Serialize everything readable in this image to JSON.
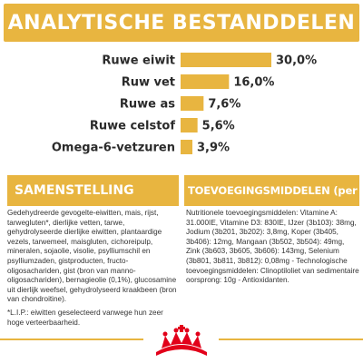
{
  "header": {
    "title": "ANALYTISCHE BESTANDDELEN"
  },
  "chart_data": {
    "type": "bar",
    "orientation": "horizontal",
    "categories": [
      "Ruwe eiwit",
      "Ruw vet",
      "Ruwe as",
      "Ruwe celstof",
      "Omega-6-vetzuren"
    ],
    "values": [
      30.0,
      16.0,
      7.6,
      5.6,
      3.9
    ],
    "value_labels": [
      "30,0%",
      "16,0%",
      "7,6%",
      "5,6%",
      "3,9%"
    ],
    "title": "ANALYTISCHE BESTANDDELEN",
    "xlabel": "",
    "ylabel": "",
    "xlim": [
      0,
      30
    ],
    "grid": false,
    "bar_color": "#e8b540"
  },
  "samenstelling": {
    "title": "SAMENSTELLING",
    "text": "Gedehydreerde gevogelte-eiwitten, mais, rijst, tarwegluten*, dierlijke vetten, tarwe, gehydrolyseerde dierlijke eiwitten, plantaardige vezels, tarwemeel, maisgluten, cichoreipulp, mineralen, sojaolie, visolie, psylliumschil en psylliumzaden, gistproducten, fructo-oligosachariden, gist (bron van manno-oligosachariden), bernagieolie (0,1%), glucosamine uit dierlijk weefsel, gehydrolyseerd kraakbeen (bron van chondroitine).",
    "footnote": "*L.I.P.: eiwitten geselecteerd vanwege hun zeer hoge verteerbaarheid."
  },
  "toevoegingsmiddelen": {
    "title": "TOEVOEGINGSMIDDELEN (per kg)",
    "text": "Nutritionele toevoegingsmiddelen: Vitamine A: 31.000IE, Vitamine D3: 830IE, IJzer (3b103): 38mg, Jodium (3b201, 3b202): 3,8mg, Koper (3b405, 3b406): 12mg, Mangaan (3b502, 3b504): 49mg, Zink (3b603, 3b605, 3b606): 143mg, Selenium (3b801, 3b811, 3b812): 0,08mg - Technologische toevoegingsmiddelen: Clinoptiloliet van sedimentaire oorsprong: 10g - Antioxidanten."
  },
  "footer": {
    "logo": "royal-canin-crown-icon"
  },
  "colors": {
    "accent": "#e8b540",
    "text": "#2b2b2b",
    "logo_red": "#e2001a"
  }
}
